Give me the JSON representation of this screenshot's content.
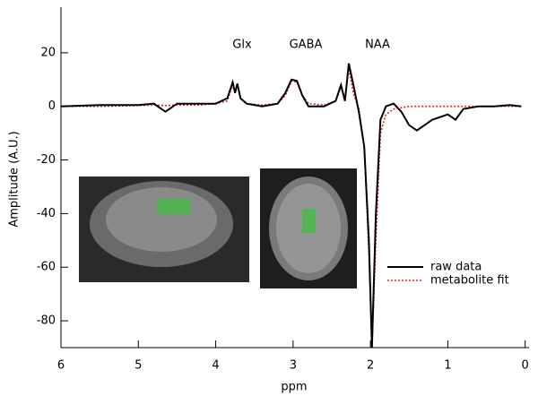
{
  "chart_data": {
    "type": "line",
    "x_label": "ppm",
    "y_label": "Amplitude (A.U.)",
    "annotations": [
      "Glx",
      "GABA",
      "NAA"
    ],
    "xlim": [
      6,
      -0.05
    ],
    "ylim": [
      -90,
      37
    ],
    "xticks": [
      6,
      5,
      4,
      3,
      2,
      1,
      0
    ],
    "yticks": [
      -80,
      -60,
      -40,
      -20,
      0,
      20
    ],
    "legend": "lower right",
    "x": [
      6.0,
      5.5,
      5.0,
      4.8,
      4.65,
      4.5,
      4.2,
      4.0,
      3.85,
      3.78,
      3.75,
      3.72,
      3.68,
      3.6,
      3.4,
      3.2,
      3.1,
      3.02,
      2.95,
      2.88,
      2.8,
      2.6,
      2.45,
      2.38,
      2.33,
      2.28,
      2.22,
      2.15,
      2.08,
      2.02,
      1.98,
      1.93,
      1.87,
      1.8,
      1.7,
      1.6,
      1.5,
      1.4,
      1.3,
      1.2,
      1.1,
      1.0,
      0.9,
      0.8,
      0.6,
      0.4,
      0.2,
      0.05
    ],
    "series": [
      {
        "name": "raw data",
        "color": "#000000",
        "style": "solid",
        "values": [
          0,
          0.5,
          0.5,
          1,
          -2,
          1,
          1,
          1,
          3,
          9,
          5,
          8.5,
          3,
          1,
          0,
          1,
          5,
          10,
          9.5,
          4,
          0,
          0,
          2,
          8,
          2,
          16,
          8,
          -2,
          -15,
          -50,
          -90,
          -40,
          -5,
          0,
          1,
          -2,
          -7,
          -9,
          -7,
          -5,
          -4,
          -3,
          -5,
          -1,
          0,
          0,
          0.5,
          0
        ]
      },
      {
        "name": "metabolite fit",
        "color": "#e02020",
        "style": "dotted",
        "values": [
          0,
          0,
          0.3,
          0.5,
          0.3,
          0.5,
          0.5,
          1,
          2,
          8,
          5,
          8,
          3,
          1,
          0.5,
          1,
          4,
          9.5,
          9,
          4,
          1,
          0.5,
          2,
          7,
          3,
          14,
          5,
          -1,
          -15,
          -55,
          -90,
          -50,
          -10,
          -3,
          -1,
          -0.5,
          0,
          0,
          0,
          0,
          0,
          0,
          0,
          0,
          0,
          0,
          0,
          0
        ]
      }
    ]
  }
}
